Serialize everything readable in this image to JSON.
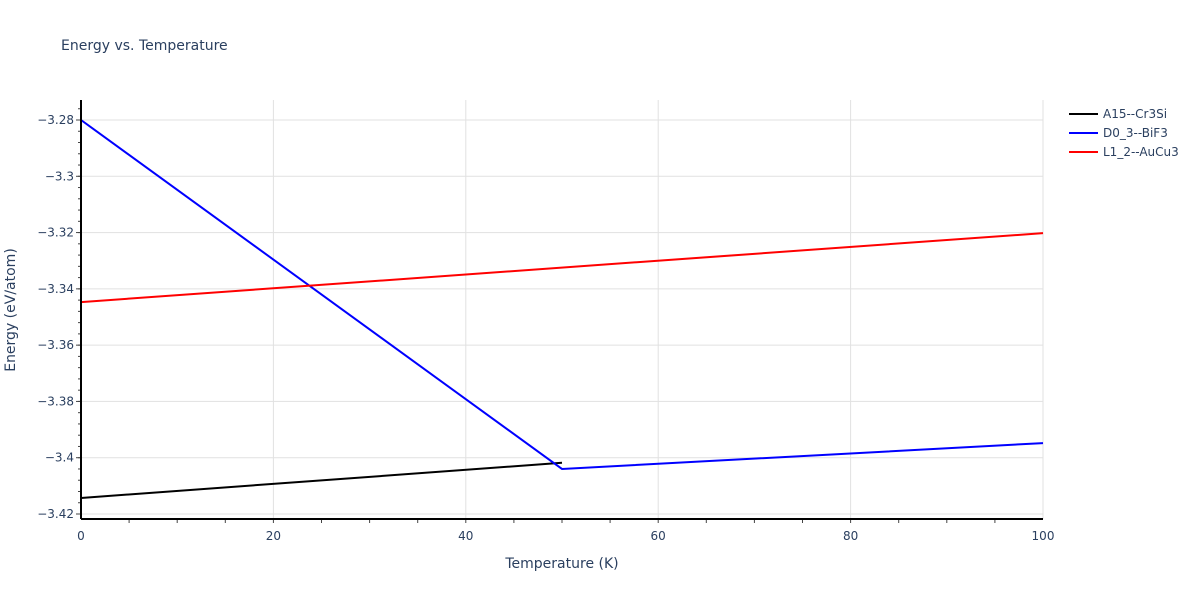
{
  "chart_data": {
    "type": "line",
    "title": "Energy vs. Temperature",
    "xlabel": "Temperature (K)",
    "ylabel": "Energy (eV/atom)",
    "xlim": [
      0,
      100
    ],
    "ylim": [
      -3.4215,
      -3.2735
    ],
    "x_ticks": [
      0,
      20,
      40,
      60,
      80,
      100
    ],
    "x_tick_labels": [
      "0",
      "20",
      "40",
      "60",
      "80",
      "100"
    ],
    "y_ticks": [
      -3.28,
      -3.3,
      -3.32,
      -3.34,
      -3.36,
      -3.38,
      -3.4,
      -3.42
    ],
    "y_tick_labels": [
      "−3.28",
      "−3.3",
      "−3.32",
      "−3.34",
      "−3.36",
      "−3.38",
      "−3.4",
      "−3.42"
    ],
    "grid": true,
    "legend_position": "top-right-outside",
    "series": [
      {
        "name": "A15--Cr3Si",
        "color": "#000000",
        "x": [
          0,
          50
        ],
        "y": [
          -3.4143,
          -3.4018
        ]
      },
      {
        "name": "D0_3--BiF3",
        "color": "#0000ff",
        "x": [
          0,
          50,
          100
        ],
        "y": [
          -3.28,
          -3.404,
          -3.3948
        ]
      },
      {
        "name": "L1_2--AuCu3",
        "color": "#ff0000",
        "x": [
          0,
          100
        ],
        "y": [
          -3.3447,
          -3.3202
        ]
      }
    ]
  }
}
